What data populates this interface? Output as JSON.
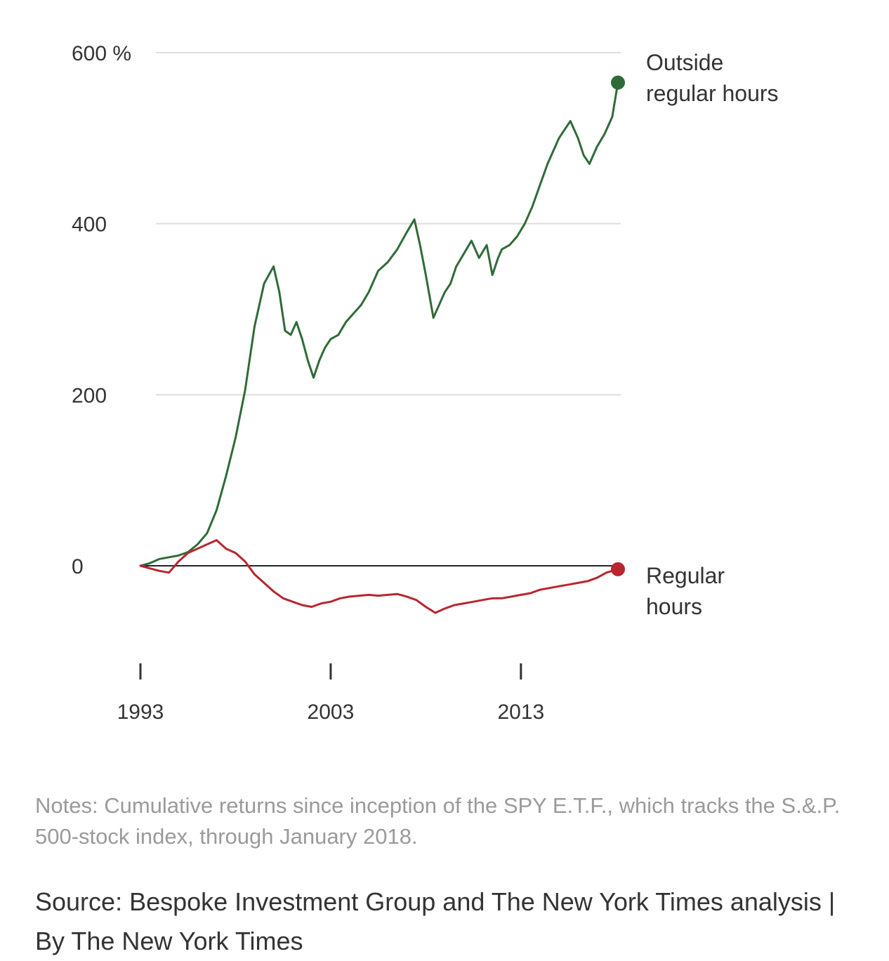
{
  "chart_data": {
    "type": "line",
    "xlim": [
      1993,
      2018.1
    ],
    "ylim": [
      -60,
      600
    ],
    "grid": true,
    "y_ticks": [
      {
        "value": 600,
        "label": "600 %"
      },
      {
        "value": 400,
        "label": "400"
      },
      {
        "value": 200,
        "label": "200"
      },
      {
        "value": 0,
        "label": "0"
      }
    ],
    "x_ticks": [
      {
        "value": 1993,
        "label": "1993"
      },
      {
        "value": 2003,
        "label": "2003"
      },
      {
        "value": 2013,
        "label": "2013"
      }
    ],
    "series": [
      {
        "name": "Outside regular hours",
        "label_lines": [
          "Outside",
          "regular hours"
        ],
        "color": "#2f6b37",
        "x": [
          1993.0,
          1993.5,
          1994.0,
          1994.5,
          1995.0,
          1995.5,
          1996.0,
          1996.5,
          1997.0,
          1997.5,
          1998.0,
          1998.5,
          1999.0,
          1999.5,
          2000.0,
          2000.3,
          2000.6,
          2000.9,
          2001.2,
          2001.5,
          2001.8,
          2002.1,
          2002.4,
          2002.7,
          2003.0,
          2003.4,
          2003.8,
          2004.2,
          2004.6,
          2005.0,
          2005.5,
          2006.0,
          2006.5,
          2007.0,
          2007.4,
          2007.7,
          2008.0,
          2008.4,
          2008.8,
          2009.0,
          2009.3,
          2009.6,
          2010.0,
          2010.4,
          2010.8,
          2011.2,
          2011.5,
          2011.8,
          2012.0,
          2012.4,
          2012.8,
          2013.2,
          2013.6,
          2014.0,
          2014.4,
          2014.8,
          2015.0,
          2015.3,
          2015.6,
          2016.0,
          2016.3,
          2016.6,
          2017.0,
          2017.4,
          2017.8,
          2018.1
        ],
        "values": [
          0,
          3,
          8,
          10,
          12,
          16,
          25,
          38,
          65,
          105,
          150,
          205,
          280,
          330,
          350,
          320,
          275,
          270,
          285,
          265,
          240,
          220,
          240,
          255,
          265,
          270,
          285,
          295,
          305,
          320,
          345,
          355,
          370,
          390,
          405,
          375,
          340,
          290,
          310,
          320,
          330,
          350,
          365,
          380,
          360,
          375,
          340,
          360,
          370,
          375,
          385,
          400,
          420,
          445,
          470,
          490,
          500,
          510,
          520,
          500,
          480,
          470,
          490,
          505,
          525,
          565
        ]
      },
      {
        "name": "Regular hours",
        "label_lines": [
          "Regular",
          "hours"
        ],
        "color": "#b8262e",
        "x": [
          1993.0,
          1993.5,
          1994.0,
          1994.5,
          1995.0,
          1995.5,
          1996.0,
          1996.5,
          1997.0,
          1997.5,
          1998.0,
          1998.5,
          1999.0,
          1999.5,
          2000.0,
          2000.5,
          2001.0,
          2001.5,
          2002.0,
          2002.5,
          2003.0,
          2003.5,
          2004.0,
          2004.5,
          2005.0,
          2005.5,
          2006.0,
          2006.5,
          2007.0,
          2007.5,
          2008.0,
          2008.5,
          2009.0,
          2009.5,
          2010.0,
          2010.5,
          2011.0,
          2011.5,
          2012.0,
          2012.5,
          2013.0,
          2013.5,
          2014.0,
          2014.5,
          2015.0,
          2015.5,
          2016.0,
          2016.5,
          2017.0,
          2017.5,
          2018.1
        ],
        "values": [
          0,
          -3,
          -6,
          -8,
          5,
          15,
          20,
          25,
          30,
          20,
          15,
          5,
          -10,
          -20,
          -30,
          -38,
          -42,
          -46,
          -48,
          -44,
          -42,
          -38,
          -36,
          -35,
          -34,
          -35,
          -34,
          -33,
          -36,
          -40,
          -48,
          -55,
          -50,
          -46,
          -44,
          -42,
          -40,
          -38,
          -38,
          -36,
          -34,
          -32,
          -28,
          -26,
          -24,
          -22,
          -20,
          -18,
          -14,
          -8,
          -4
        ]
      }
    ]
  },
  "notes": "Notes: Cumulative returns since inception of the SPY E.T.F., which tracks the S.&.P. 500-stock index, through January 2018.",
  "source": "Source: Bespoke Investment Group and The New York Times analysis | By The New York Times"
}
